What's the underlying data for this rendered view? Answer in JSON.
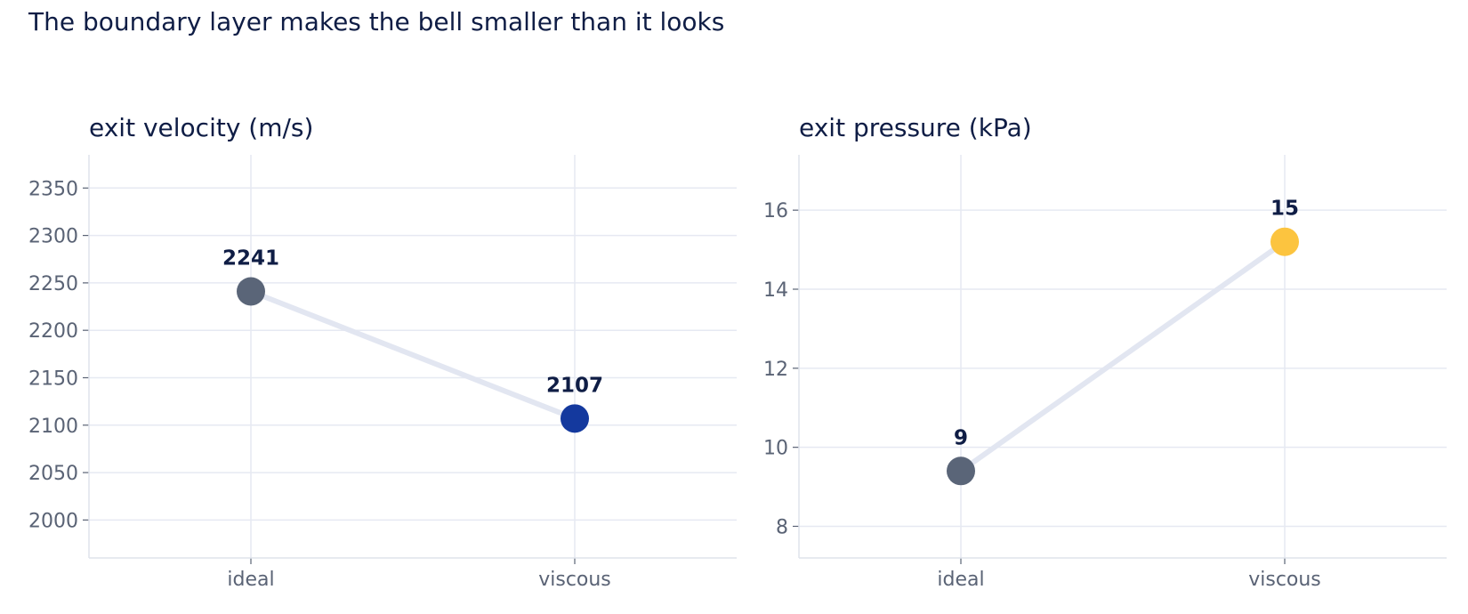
{
  "title": "The boundary layer makes the bell smaller than it looks",
  "chart_data": [
    {
      "type": "line",
      "title": "exit velocity  (m/s)",
      "categories": [
        "ideal",
        "viscous"
      ],
      "values": [
        2241,
        2107
      ],
      "data_labels": [
        "2241",
        "2107"
      ],
      "point_colors": [
        "#5a6578",
        "#14399e"
      ],
      "line_color": "#e2e6f1",
      "ylim": [
        1960,
        2385
      ],
      "yticks": [
        2000,
        2050,
        2100,
        2150,
        2200,
        2250,
        2300,
        2350
      ],
      "grid": true,
      "legend": "none"
    },
    {
      "type": "line",
      "title": "exit pressure  (kPa)",
      "categories": [
        "ideal",
        "viscous"
      ],
      "values": [
        9.4,
        15.2
      ],
      "data_labels": [
        "9",
        "15"
      ],
      "point_colors": [
        "#5a6578",
        "#fcc43f"
      ],
      "line_color": "#e2e6f1",
      "ylim": [
        7.2,
        17.4
      ],
      "yticks": [
        8,
        10,
        12,
        14,
        16
      ],
      "grid": true,
      "legend": "none"
    }
  ]
}
